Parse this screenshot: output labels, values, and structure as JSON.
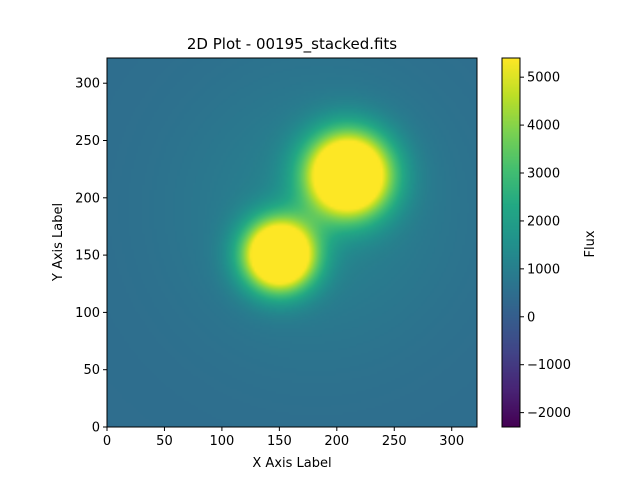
{
  "chart_data": {
    "type": "heatmap",
    "title": "2D Plot - 00195_stacked.fits",
    "xlabel": "X Axis Label",
    "ylabel": "Y Axis Label",
    "xlim": [
      0,
      322
    ],
    "ylim": [
      0,
      322
    ],
    "xticks": [
      0,
      50,
      100,
      150,
      200,
      250,
      300
    ],
    "yticks": [
      0,
      50,
      100,
      150,
      200,
      250,
      300
    ],
    "colormap": "viridis",
    "colorbar": {
      "label": "Flux",
      "range": [
        -2300,
        5400
      ],
      "ticks": [
        -2000,
        -1000,
        0,
        1000,
        2000,
        3000,
        4000,
        5000
      ],
      "tick_labels": [
        "−2000",
        "−1000",
        "0",
        "1000",
        "2000",
        "3000",
        "4000",
        "5000"
      ]
    },
    "background_flux": 450,
    "saturated_flux": 5400,
    "sources": [
      {
        "name": "upper lobe",
        "x": 210,
        "y": 220,
        "sigma_x": 25,
        "sigma_y": 25
      },
      {
        "name": "lower lobe",
        "x": 150,
        "y": 150,
        "sigma_x": 21,
        "sigma_y": 21
      }
    ],
    "grid": false
  }
}
